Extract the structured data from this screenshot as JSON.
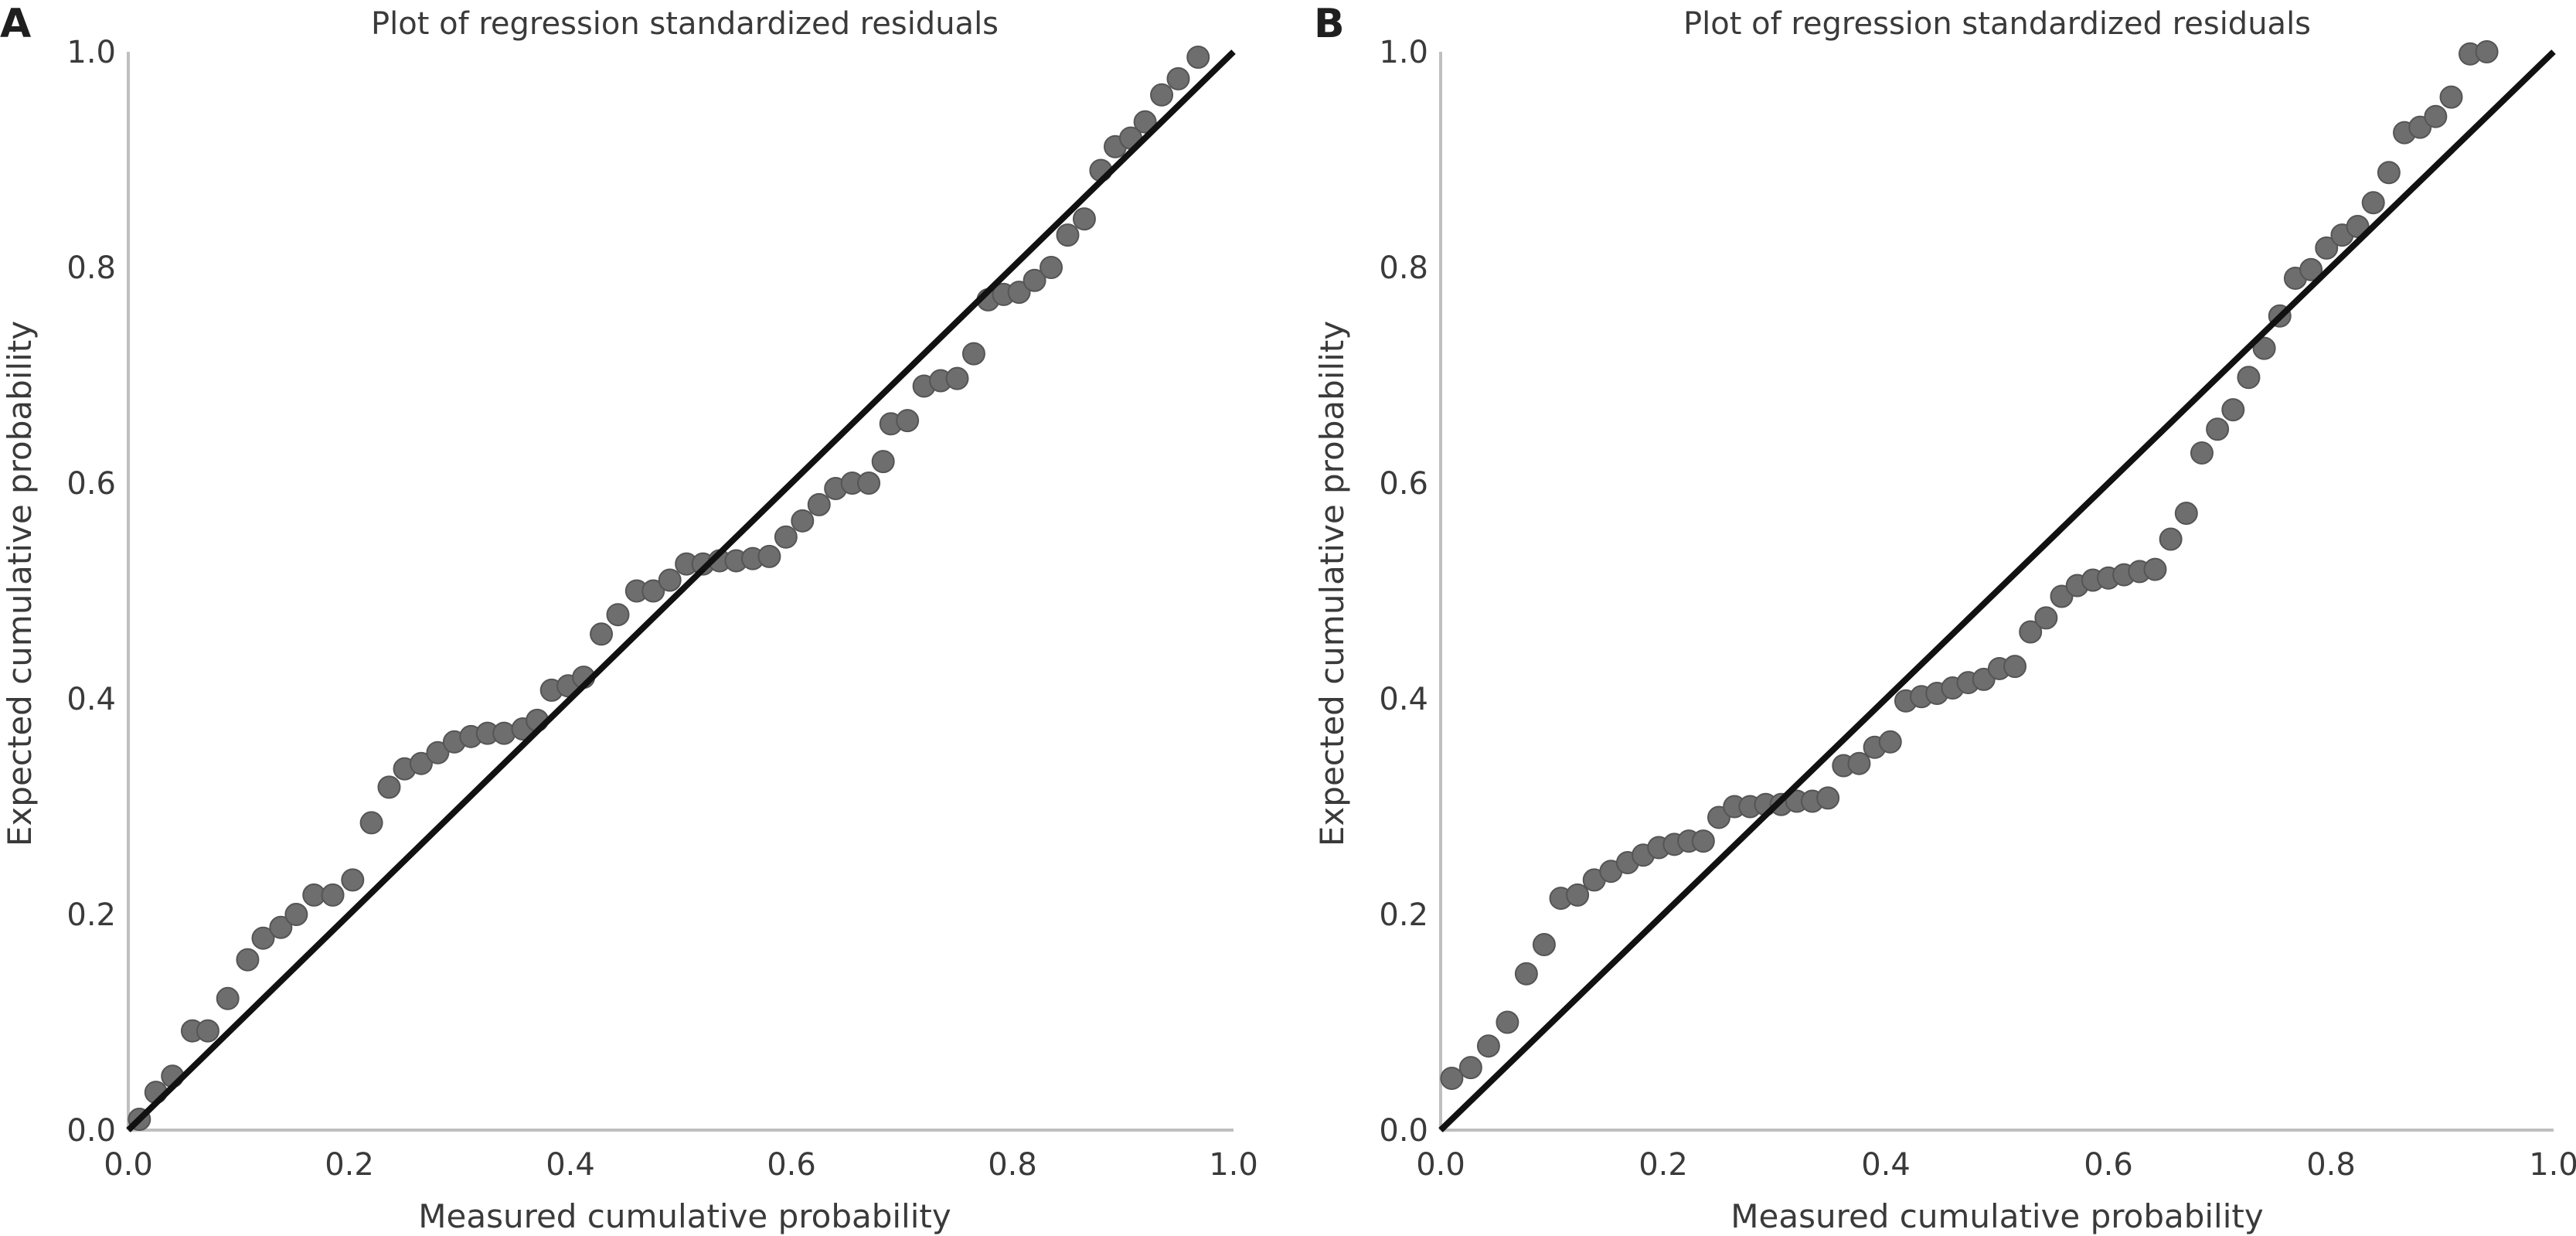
{
  "figure": {
    "panels": [
      "A",
      "B"
    ]
  },
  "chart_data": [
    {
      "panel": "A",
      "type": "scatter",
      "title": "Plot of regression standardized residuals",
      "xlabel": "Measured cumulative probability",
      "ylabel": "Expected cumulative probability",
      "xlim": [
        0,
        1
      ],
      "ylim": [
        0,
        1
      ],
      "xticks": [
        "0.0",
        "0.2",
        "0.4",
        "0.6",
        "0.8",
        "1.0"
      ],
      "yticks": [
        "0.0",
        "0.2",
        "0.4",
        "0.6",
        "0.8",
        "1.0"
      ],
      "grid": false,
      "reference_line": {
        "from": [
          0,
          0
        ],
        "to": [
          1,
          1
        ]
      },
      "colors": {
        "points": "#6e6e6e",
        "point_edge": "#555555",
        "line": "#111111",
        "axis": "#bfbfbf",
        "text": "#3a3a3a"
      },
      "points": [
        [
          0.01,
          0.01
        ],
        [
          0.025,
          0.035
        ],
        [
          0.04,
          0.05
        ],
        [
          0.058,
          0.092
        ],
        [
          0.072,
          0.092
        ],
        [
          0.09,
          0.122
        ],
        [
          0.108,
          0.158
        ],
        [
          0.122,
          0.178
        ],
        [
          0.138,
          0.188
        ],
        [
          0.152,
          0.2
        ],
        [
          0.168,
          0.218
        ],
        [
          0.185,
          0.218
        ],
        [
          0.203,
          0.232
        ],
        [
          0.22,
          0.285
        ],
        [
          0.236,
          0.318
        ],
        [
          0.25,
          0.335
        ],
        [
          0.265,
          0.34
        ],
        [
          0.28,
          0.35
        ],
        [
          0.295,
          0.36
        ],
        [
          0.31,
          0.365
        ],
        [
          0.325,
          0.368
        ],
        [
          0.34,
          0.368
        ],
        [
          0.357,
          0.372
        ],
        [
          0.37,
          0.38
        ],
        [
          0.383,
          0.408
        ],
        [
          0.398,
          0.412
        ],
        [
          0.412,
          0.42
        ],
        [
          0.428,
          0.46
        ],
        [
          0.443,
          0.478
        ],
        [
          0.46,
          0.5
        ],
        [
          0.475,
          0.5
        ],
        [
          0.49,
          0.51
        ],
        [
          0.505,
          0.525
        ],
        [
          0.52,
          0.525
        ],
        [
          0.535,
          0.528
        ],
        [
          0.55,
          0.528
        ],
        [
          0.565,
          0.53
        ],
        [
          0.58,
          0.532
        ],
        [
          0.595,
          0.55
        ],
        [
          0.61,
          0.565
        ],
        [
          0.625,
          0.58
        ],
        [
          0.64,
          0.595
        ],
        [
          0.655,
          0.6
        ],
        [
          0.67,
          0.6
        ],
        [
          0.683,
          0.62
        ],
        [
          0.69,
          0.655
        ],
        [
          0.705,
          0.658
        ],
        [
          0.72,
          0.69
        ],
        [
          0.735,
          0.695
        ],
        [
          0.75,
          0.697
        ],
        [
          0.765,
          0.72
        ],
        [
          0.778,
          0.77
        ],
        [
          0.792,
          0.775
        ],
        [
          0.806,
          0.777
        ],
        [
          0.82,
          0.788
        ],
        [
          0.835,
          0.8
        ],
        [
          0.85,
          0.83
        ],
        [
          0.865,
          0.845
        ],
        [
          0.88,
          0.89
        ],
        [
          0.893,
          0.912
        ],
        [
          0.907,
          0.92
        ],
        [
          0.92,
          0.935
        ],
        [
          0.935,
          0.96
        ],
        [
          0.95,
          0.975
        ],
        [
          0.968,
          0.995
        ]
      ]
    },
    {
      "panel": "B",
      "type": "scatter",
      "title": "Plot of regression standardized residuals",
      "xlabel": "Measured cumulative probability",
      "ylabel": "Expected cumulative probability",
      "xlim": [
        0,
        1
      ],
      "ylim": [
        0,
        1
      ],
      "xticks": [
        "0.0",
        "0.2",
        "0.4",
        "0.6",
        "0.8",
        "1.0"
      ],
      "yticks": [
        "0.0",
        "0.2",
        "0.4",
        "0.6",
        "0.8",
        "1.0"
      ],
      "grid": false,
      "reference_line": {
        "from": [
          0,
          0
        ],
        "to": [
          1,
          1
        ]
      },
      "colors": {
        "points": "#6e6e6e",
        "point_edge": "#555555",
        "line": "#111111",
        "axis": "#bfbfbf",
        "text": "#3a3a3a"
      },
      "points": [
        [
          0.01,
          0.048
        ],
        [
          0.027,
          0.058
        ],
        [
          0.043,
          0.078
        ],
        [
          0.06,
          0.1
        ],
        [
          0.077,
          0.145
        ],
        [
          0.093,
          0.172
        ],
        [
          0.108,
          0.215
        ],
        [
          0.123,
          0.218
        ],
        [
          0.138,
          0.232
        ],
        [
          0.153,
          0.24
        ],
        [
          0.168,
          0.248
        ],
        [
          0.182,
          0.255
        ],
        [
          0.196,
          0.262
        ],
        [
          0.21,
          0.265
        ],
        [
          0.223,
          0.268
        ],
        [
          0.236,
          0.268
        ],
        [
          0.25,
          0.29
        ],
        [
          0.264,
          0.3
        ],
        [
          0.278,
          0.3
        ],
        [
          0.292,
          0.302
        ],
        [
          0.306,
          0.302
        ],
        [
          0.32,
          0.305
        ],
        [
          0.334,
          0.305
        ],
        [
          0.348,
          0.308
        ],
        [
          0.362,
          0.338
        ],
        [
          0.376,
          0.34
        ],
        [
          0.39,
          0.355
        ],
        [
          0.404,
          0.36
        ],
        [
          0.418,
          0.398
        ],
        [
          0.432,
          0.402
        ],
        [
          0.446,
          0.405
        ],
        [
          0.46,
          0.41
        ],
        [
          0.474,
          0.415
        ],
        [
          0.488,
          0.418
        ],
        [
          0.502,
          0.428
        ],
        [
          0.516,
          0.43
        ],
        [
          0.53,
          0.462
        ],
        [
          0.544,
          0.475
        ],
        [
          0.558,
          0.495
        ],
        [
          0.572,
          0.505
        ],
        [
          0.586,
          0.51
        ],
        [
          0.6,
          0.512
        ],
        [
          0.614,
          0.515
        ],
        [
          0.628,
          0.518
        ],
        [
          0.642,
          0.52
        ],
        [
          0.656,
          0.548
        ],
        [
          0.67,
          0.572
        ],
        [
          0.684,
          0.628
        ],
        [
          0.698,
          0.65
        ],
        [
          0.712,
          0.668
        ],
        [
          0.726,
          0.698
        ],
        [
          0.74,
          0.725
        ],
        [
          0.754,
          0.755
        ],
        [
          0.768,
          0.79
        ],
        [
          0.782,
          0.798
        ],
        [
          0.796,
          0.818
        ],
        [
          0.81,
          0.83
        ],
        [
          0.824,
          0.838
        ],
        [
          0.838,
          0.86
        ],
        [
          0.852,
          0.888
        ],
        [
          0.866,
          0.925
        ],
        [
          0.88,
          0.93
        ],
        [
          0.894,
          0.94
        ],
        [
          0.908,
          0.958
        ],
        [
          0.925,
          0.998
        ],
        [
          0.94,
          1.0
        ]
      ]
    }
  ]
}
